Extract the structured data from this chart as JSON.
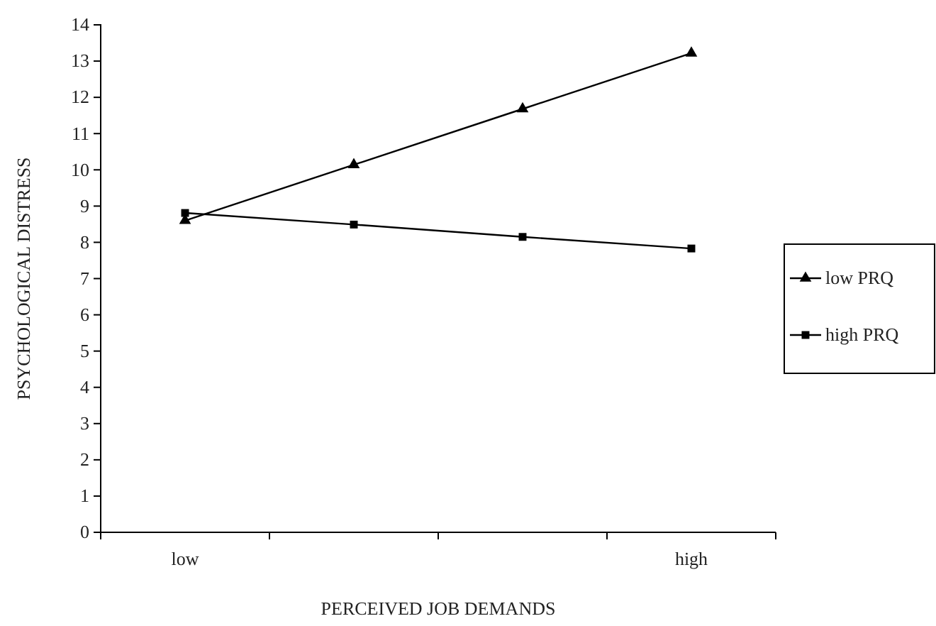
{
  "chart_data": {
    "type": "line",
    "xlabel": "PERCEIVED JOB DEMANDS",
    "ylabel": "PSYCHOLOGICAL DISTRESS",
    "categories": [
      "low",
      null,
      null,
      "high"
    ],
    "series": [
      {
        "name": "low PRQ",
        "color": "#000000",
        "marker": "triangle",
        "values": [
          8.6,
          10.14,
          11.68,
          13.22
        ]
      },
      {
        "name": "high PRQ",
        "color": "#000000",
        "marker": "square",
        "values": [
          8.81,
          8.49,
          8.15,
          7.83
        ]
      }
    ],
    "ylim": [
      0,
      14
    ],
    "yticks": [
      0,
      1,
      2,
      3,
      4,
      5,
      6,
      7,
      8,
      9,
      10,
      11,
      12,
      13,
      14
    ],
    "legend": "right",
    "grid": false
  }
}
